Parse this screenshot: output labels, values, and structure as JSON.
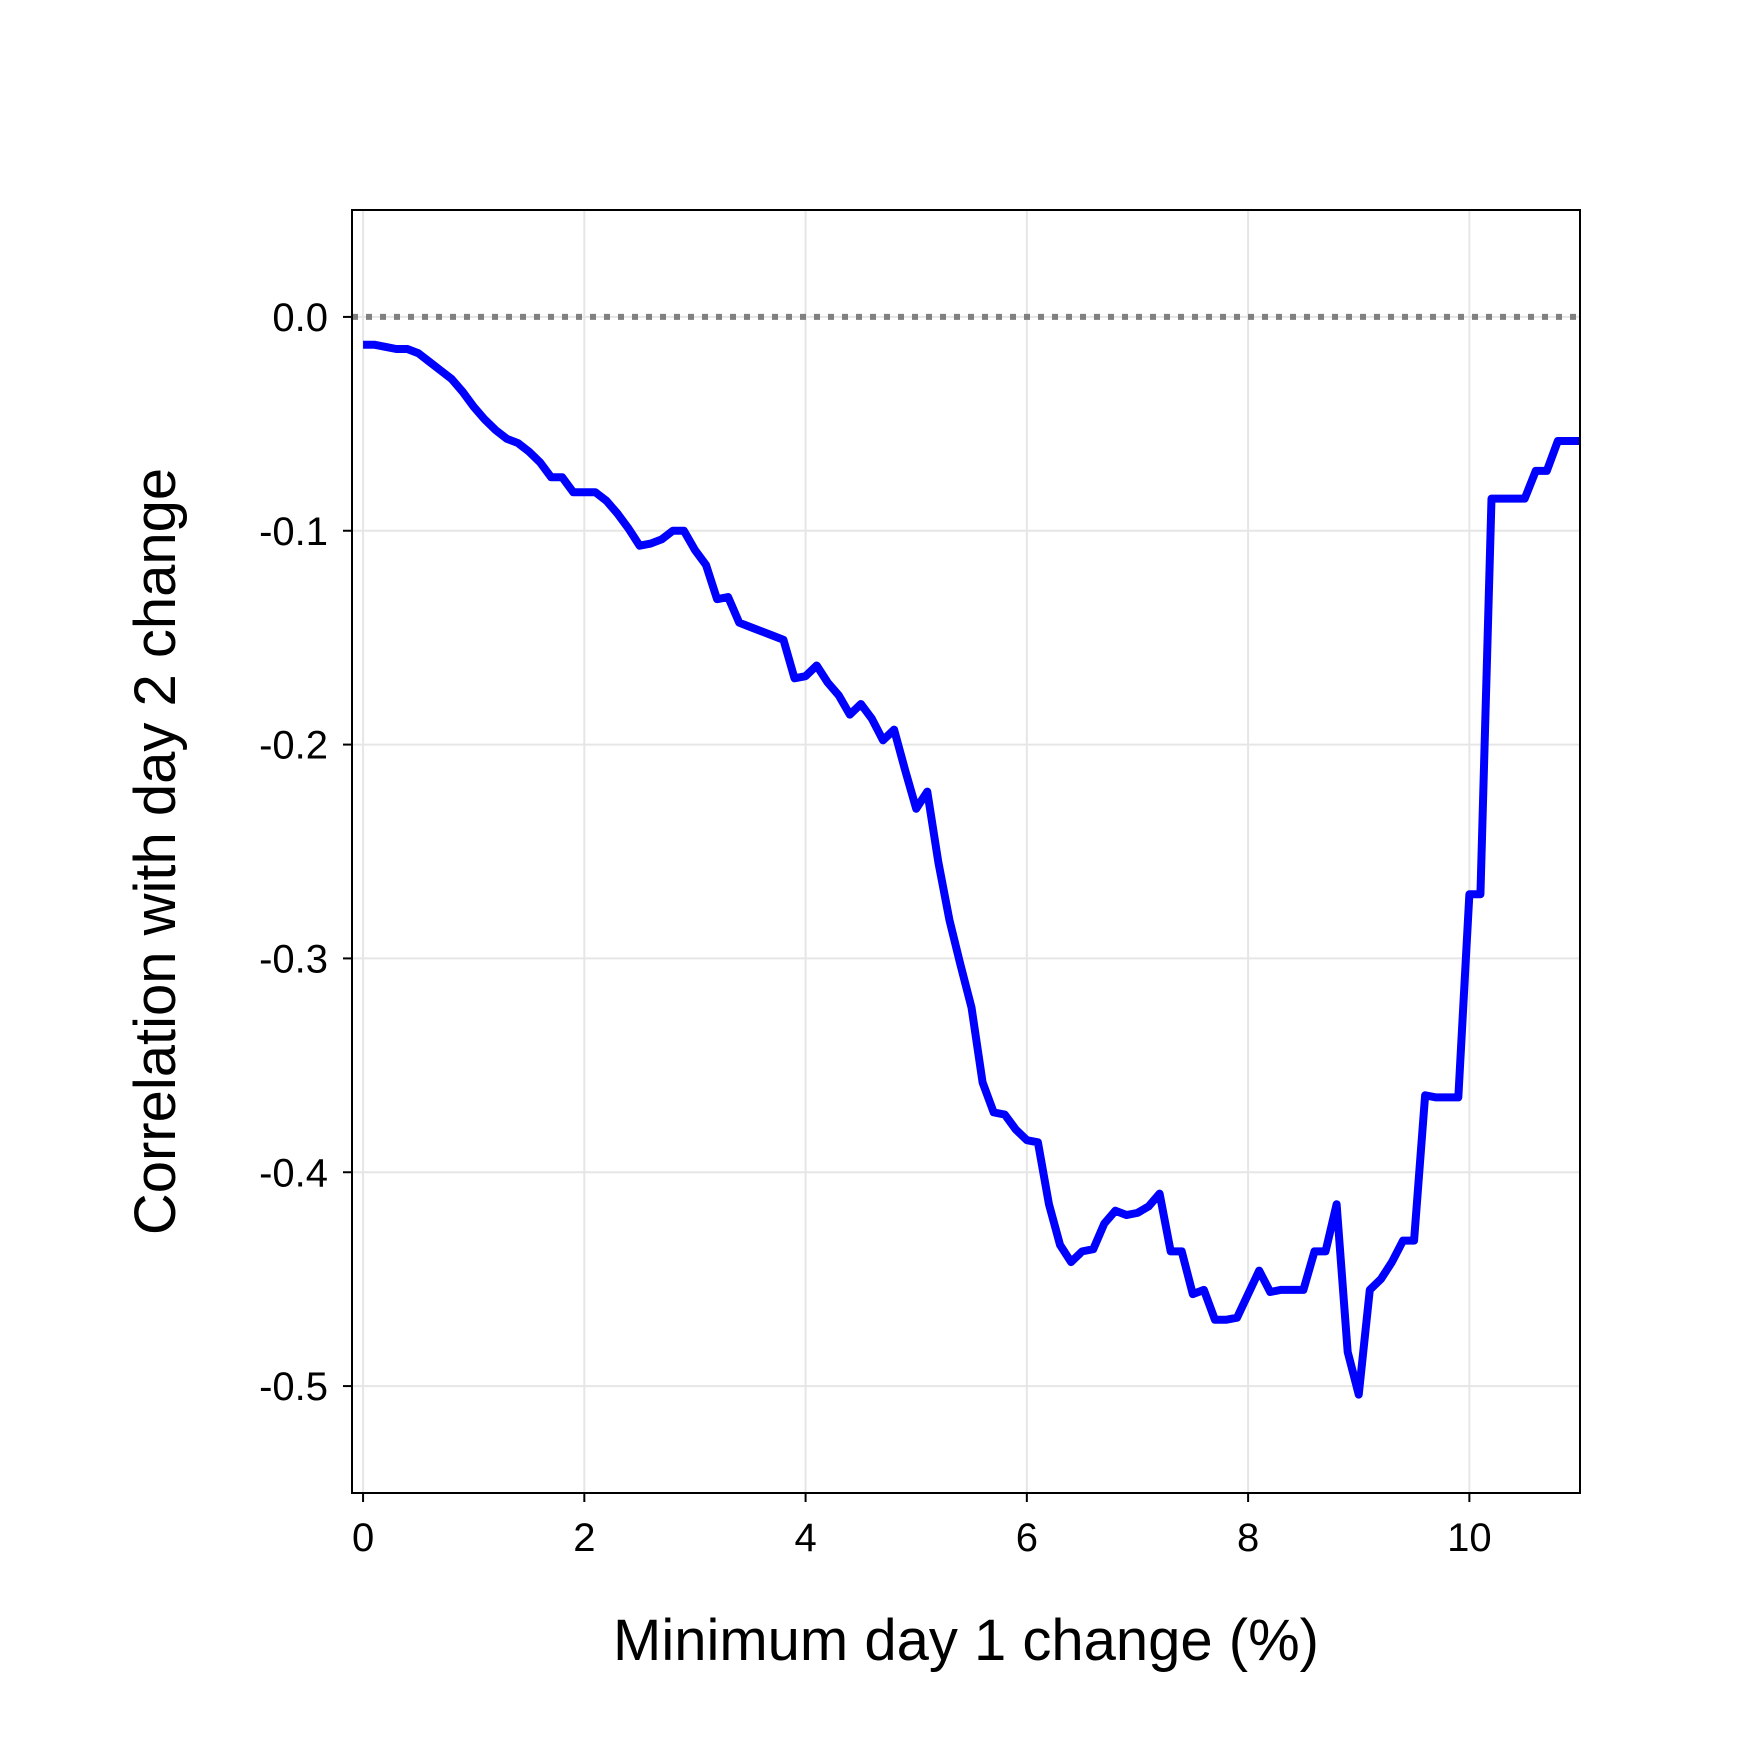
{
  "chart_data": {
    "type": "line",
    "title": "",
    "xlabel": "Minimum day 1 change (%)",
    "ylabel": "Correlation with day 2 change",
    "xlim": [
      -0.1,
      11.0
    ],
    "ylim": [
      -0.55,
      0.05
    ],
    "xticks": [
      0,
      2,
      4,
      6,
      8,
      10
    ],
    "xtick_labels": [
      "0",
      "2",
      "4",
      "6",
      "8",
      "10"
    ],
    "yticks": [
      0.0,
      -0.1,
      -0.2,
      -0.3,
      -0.4,
      -0.5
    ],
    "ytick_labels": [
      "0.0",
      "-0.1",
      "-0.2",
      "-0.3",
      "-0.4",
      "-0.5"
    ],
    "grid": true,
    "legend": "none",
    "reference_line": {
      "y": 0.0,
      "style": "dotted",
      "color": "#808080"
    },
    "series": [
      {
        "color": "#0000ff",
        "x": [
          0.0,
          0.1,
          0.2,
          0.3,
          0.4,
          0.5,
          0.6,
          0.7,
          0.8,
          0.9,
          1.0,
          1.1,
          1.2,
          1.3,
          1.4,
          1.5,
          1.6,
          1.7,
          1.8,
          1.9,
          2.0,
          2.1,
          2.2,
          2.3,
          2.4,
          2.5,
          2.6,
          2.7,
          2.8,
          2.9,
          3.0,
          3.1,
          3.2,
          3.3,
          3.4,
          3.5,
          3.6,
          3.7,
          3.8,
          3.9,
          4.0,
          4.1,
          4.2,
          4.3,
          4.4,
          4.5,
          4.6,
          4.7,
          4.8,
          4.9,
          5.0,
          5.1,
          5.2,
          5.3,
          5.4,
          5.5,
          5.6,
          5.7,
          5.8,
          5.9,
          6.0,
          6.1,
          6.2,
          6.3,
          6.4,
          6.5,
          6.6,
          6.7,
          6.8,
          6.9,
          7.0,
          7.1,
          7.2,
          7.3,
          7.4,
          7.5,
          7.6,
          7.7,
          7.8,
          7.9,
          8.0,
          8.1,
          8.2,
          8.3,
          8.4,
          8.5,
          8.6,
          8.7,
          8.8,
          8.9,
          9.0,
          9.1,
          9.2,
          9.3,
          9.4,
          9.5,
          9.6,
          9.7,
          9.8,
          9.9,
          10.0,
          10.1,
          10.2,
          10.3,
          10.4,
          10.5,
          10.6,
          10.7,
          10.8,
          10.9,
          11.0
        ],
        "values": [
          -0.013,
          -0.013,
          -0.014,
          -0.015,
          -0.015,
          -0.017,
          -0.021,
          -0.025,
          -0.029,
          -0.035,
          -0.042,
          -0.048,
          -0.053,
          -0.057,
          -0.059,
          -0.063,
          -0.068,
          -0.075,
          -0.075,
          -0.082,
          -0.082,
          -0.082,
          -0.086,
          -0.092,
          -0.099,
          -0.107,
          -0.106,
          -0.104,
          -0.1,
          -0.1,
          -0.109,
          -0.116,
          -0.132,
          -0.131,
          -0.143,
          -0.145,
          -0.147,
          -0.149,
          -0.151,
          -0.169,
          -0.168,
          -0.163,
          -0.171,
          -0.177,
          -0.186,
          -0.181,
          -0.188,
          -0.198,
          -0.193,
          -0.212,
          -0.23,
          -0.222,
          -0.255,
          -0.282,
          -0.303,
          -0.323,
          -0.358,
          -0.372,
          -0.373,
          -0.38,
          -0.385,
          -0.386,
          -0.415,
          -0.434,
          -0.442,
          -0.437,
          -0.436,
          -0.424,
          -0.418,
          -0.42,
          -0.419,
          -0.416,
          -0.41,
          -0.437,
          -0.437,
          -0.457,
          -0.455,
          -0.469,
          -0.469,
          -0.468,
          -0.457,
          -0.446,
          -0.456,
          -0.455,
          -0.455,
          -0.455,
          -0.437,
          -0.437,
          -0.415,
          -0.484,
          -0.504,
          -0.455,
          -0.45,
          -0.442,
          -0.432,
          -0.432,
          -0.364,
          -0.365,
          -0.365,
          -0.365,
          -0.27,
          -0.27,
          -0.085,
          -0.085,
          -0.085,
          -0.085,
          -0.072,
          -0.072,
          -0.058,
          -0.058,
          -0.058
        ]
      }
    ]
  }
}
